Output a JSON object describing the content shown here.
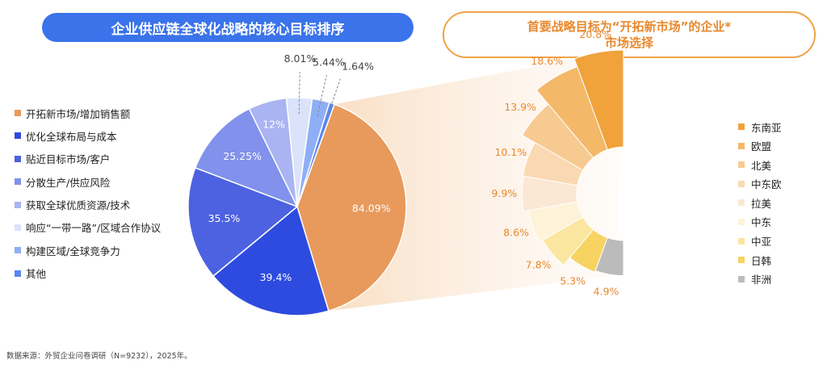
{
  "header": {
    "left_title": "企业供应链全球化战略的核心目标排序",
    "right_title_line1": "首要战略目标为“开拓新市场”的企业*",
    "right_title_line2": "市场选择"
  },
  "chart_data": [
    {
      "type": "pie",
      "title": "企业供应链全球化战略的核心目标排序",
      "categories": [
        "开拓新市场/增加销售额",
        "优化全球布局与成本",
        "贴近目标市场/客户",
        "分散生产/供应风险",
        "获取全球优质资源/技术",
        "响应“一带一路”/区域合作协议",
        "构建区域/全球竞争力",
        "其他"
      ],
      "values": [
        84.09,
        39.4,
        35.5,
        25.25,
        12,
        8.01,
        5.44,
        1.64
      ],
      "labels": [
        "84.09%",
        "39.4%",
        "35.5%",
        "25.25%",
        "12%",
        "8.01%",
        "5.44%",
        "1.64%"
      ],
      "colors": [
        "#e89a5c",
        "#2e4be0",
        "#4d62e0",
        "#8191ec",
        "#aab4f2",
        "#dbe3fb",
        "#8eaef6",
        "#5a86f0"
      ],
      "legend_position": "left"
    },
    {
      "type": "pie",
      "title": "首要战略目标为“开拓新市场”的企业*市场选择",
      "categories": [
        "东南亚",
        "欧盟",
        "北美",
        "中东欧",
        "拉美",
        "中东",
        "中亚",
        "日韩",
        "非洲"
      ],
      "values": [
        20.8,
        18.6,
        13.9,
        10.1,
        9.9,
        8.6,
        7.8,
        5.3,
        4.9
      ],
      "labels": [
        "20.8%",
        "18.6%",
        "13.9%",
        "10.1%",
        "9.9%",
        "8.6%",
        "7.8%",
        "5.3%",
        "4.9%"
      ],
      "colors": [
        "#f0a23b",
        "#f4b869",
        "#f7ca92",
        "#fad8b1",
        "#fce7d4",
        "#fef3d8",
        "#fbe6a0",
        "#f7d362",
        "#bbbbbb"
      ],
      "legend_position": "right"
    }
  ],
  "footer": {
    "source": "数据来源：外贸企业问卷调研（N=9232），2025年。"
  }
}
